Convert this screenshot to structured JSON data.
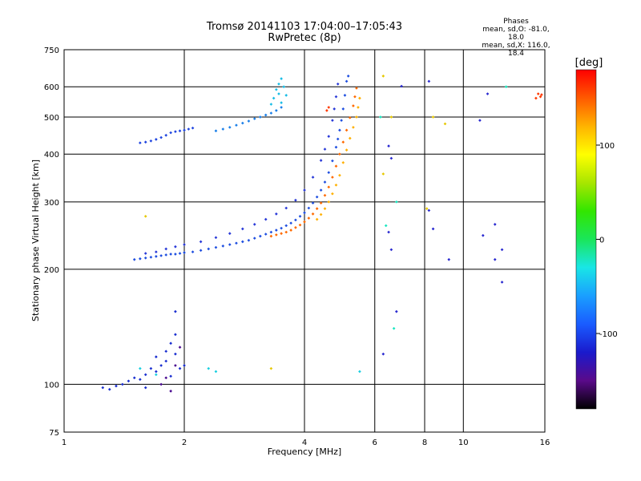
{
  "header": {
    "title_line1": "Tromsø 20141103 17:04:00–17:05:43",
    "title_line2": "RwPretec (8p)"
  },
  "phase_info": {
    "title": "Phases",
    "line_o": "mean, sd,O: -81.0, 18.0",
    "line_x": "mean, sd,X: 116.0, 18.4"
  },
  "colorbar": {
    "label": "[deg]",
    "ticks": [
      100,
      0,
      -100
    ],
    "range": [
      -180,
      180
    ],
    "colors": [
      "#000000",
      "#5a0a8a",
      "#1a1acc",
      "#1a5cff",
      "#1a9fff",
      "#19e6e6",
      "#1ae65a",
      "#32e600",
      "#a8e600",
      "#ffff00",
      "#ffb300",
      "#ff5a00",
      "#ff0000"
    ]
  },
  "chart_data": {
    "type": "scatter",
    "xlabel": "Frequency [MHz]",
    "ylabel": "Stationary phase Virtual Height [km]",
    "x_scale": "log",
    "y_scale": "log",
    "xlim": [
      1,
      16
    ],
    "ylim": [
      75,
      750
    ],
    "xticks": [
      1,
      2,
      4,
      6,
      8,
      10,
      16
    ],
    "yticks": [
      75,
      100,
      200,
      300,
      400,
      500,
      600,
      750
    ],
    "grid": true,
    "series": [
      {
        "color_value": -100,
        "color": "#1f4fe0",
        "points": [
          [
            1.5,
            212
          ],
          [
            1.55,
            213
          ],
          [
            1.6,
            214
          ],
          [
            1.65,
            215
          ],
          [
            1.7,
            216
          ],
          [
            1.75,
            217
          ],
          [
            1.8,
            218
          ],
          [
            1.85,
            219
          ],
          [
            1.9,
            219
          ],
          [
            1.95,
            220
          ],
          [
            2.0,
            221
          ],
          [
            2.1,
            222
          ],
          [
            2.2,
            224
          ],
          [
            2.3,
            226
          ],
          [
            2.4,
            228
          ],
          [
            2.5,
            230
          ],
          [
            2.6,
            232
          ],
          [
            2.7,
            234
          ],
          [
            2.8,
            236
          ],
          [
            2.9,
            238
          ],
          [
            3.0,
            241
          ],
          [
            3.1,
            244
          ],
          [
            3.2,
            247
          ],
          [
            3.3,
            250
          ],
          [
            3.4,
            253
          ],
          [
            3.5,
            256
          ],
          [
            3.6,
            260
          ],
          [
            3.7,
            264
          ],
          [
            3.8,
            269
          ],
          [
            3.9,
            275
          ],
          [
            4.0,
            281
          ],
          [
            4.1,
            289
          ],
          [
            4.2,
            298
          ],
          [
            4.3,
            309
          ],
          [
            4.4,
            322
          ],
          [
            4.5,
            338
          ],
          [
            4.6,
            358
          ],
          [
            4.7,
            384
          ],
          [
            4.8,
            417
          ],
          [
            4.85,
            438
          ],
          [
            4.9,
            462
          ],
          [
            4.95,
            490
          ],
          [
            5.0,
            525
          ],
          [
            5.05,
            570
          ],
          [
            5.1,
            620
          ],
          [
            5.15,
            640
          ]
        ]
      },
      {
        "color_value": -100,
        "color": "#2a3ad8",
        "points": [
          [
            1.6,
            220
          ],
          [
            1.7,
            222
          ],
          [
            1.8,
            226
          ],
          [
            1.9,
            229
          ],
          [
            2.0,
            232
          ],
          [
            2.2,
            236
          ],
          [
            2.4,
            242
          ],
          [
            2.6,
            248
          ],
          [
            2.8,
            255
          ],
          [
            3.0,
            262
          ],
          [
            3.2,
            270
          ],
          [
            3.4,
            279
          ],
          [
            3.6,
            289
          ],
          [
            3.8,
            303
          ],
          [
            4.0,
            322
          ],
          [
            4.2,
            348
          ],
          [
            4.4,
            385
          ],
          [
            4.5,
            412
          ],
          [
            4.6,
            445
          ],
          [
            4.7,
            490
          ],
          [
            4.75,
            525
          ],
          [
            4.8,
            565
          ],
          [
            4.85,
            610
          ]
        ]
      },
      {
        "color_value": -100,
        "color": "#2046e0",
        "points": [
          [
            1.55,
            428
          ],
          [
            1.6,
            430
          ],
          [
            1.65,
            433
          ],
          [
            1.7,
            437
          ],
          [
            1.75,
            442
          ],
          [
            1.8,
            448
          ],
          [
            1.85,
            455
          ],
          [
            1.9,
            458
          ],
          [
            1.95,
            460
          ],
          [
            2.0,
            462
          ],
          [
            2.05,
            465
          ],
          [
            2.1,
            468
          ]
        ]
      },
      {
        "color_value": -80,
        "color": "#1a7fe8",
        "points": [
          [
            2.4,
            460
          ],
          [
            2.5,
            465
          ],
          [
            2.6,
            470
          ],
          [
            2.7,
            476
          ],
          [
            2.8,
            482
          ],
          [
            2.9,
            488
          ],
          [
            3.0,
            495
          ],
          [
            3.1,
            500
          ],
          [
            3.2,
            506
          ],
          [
            3.3,
            512
          ],
          [
            3.4,
            520
          ],
          [
            3.5,
            530
          ]
        ]
      },
      {
        "color_value": -60,
        "color": "#19bde6",
        "points": [
          [
            3.3,
            540
          ],
          [
            3.35,
            560
          ],
          [
            3.4,
            590
          ],
          [
            3.45,
            610
          ],
          [
            3.5,
            630
          ],
          [
            3.55,
            600
          ],
          [
            3.6,
            570
          ],
          [
            3.5,
            545
          ],
          [
            3.45,
            575
          ]
        ]
      },
      {
        "color_value": 120,
        "color": "#ff6a00",
        "points": [
          [
            3.3,
            244
          ],
          [
            3.4,
            246
          ],
          [
            3.5,
            248
          ],
          [
            3.6,
            250
          ],
          [
            3.7,
            253
          ],
          [
            3.8,
            257
          ],
          [
            3.9,
            261
          ],
          [
            4.0,
            266
          ],
          [
            4.1,
            272
          ],
          [
            4.2,
            279
          ],
          [
            4.3,
            288
          ],
          [
            4.4,
            298
          ],
          [
            4.5,
            312
          ],
          [
            4.6,
            328
          ],
          [
            4.7,
            348
          ],
          [
            4.8,
            372
          ],
          [
            4.9,
            400
          ],
          [
            5.0,
            430
          ],
          [
            5.1,
            462
          ],
          [
            5.2,
            498
          ],
          [
            5.3,
            535
          ],
          [
            5.35,
            565
          ],
          [
            5.4,
            595
          ]
        ]
      },
      {
        "color_value": 100,
        "color": "#ffb000",
        "points": [
          [
            4.3,
            270
          ],
          [
            4.4,
            278
          ],
          [
            4.5,
            288
          ],
          [
            4.6,
            300
          ],
          [
            4.7,
            315
          ],
          [
            4.8,
            332
          ],
          [
            4.9,
            352
          ],
          [
            5.0,
            380
          ],
          [
            5.1,
            410
          ],
          [
            5.2,
            440
          ],
          [
            5.3,
            470
          ],
          [
            5.4,
            500
          ],
          [
            5.45,
            530
          ],
          [
            5.5,
            560
          ]
        ]
      },
      {
        "color_value": -100,
        "color": "#1a2fd0",
        "points": [
          [
            1.25,
            98
          ],
          [
            1.3,
            97
          ],
          [
            1.35,
            99
          ],
          [
            1.4,
            100
          ],
          [
            1.45,
            102
          ],
          [
            1.5,
            104
          ],
          [
            1.55,
            103
          ],
          [
            1.6,
            106
          ],
          [
            1.65,
            110
          ],
          [
            1.7,
            108
          ],
          [
            1.75,
            112
          ],
          [
            1.8,
            115
          ],
          [
            1.85,
            105
          ],
          [
            1.9,
            120
          ],
          [
            1.9,
            135
          ],
          [
            1.9,
            155
          ],
          [
            1.85,
            128
          ],
          [
            1.8,
            122
          ],
          [
            1.95,
            110
          ],
          [
            2.0,
            112
          ],
          [
            1.7,
            118
          ],
          [
            1.6,
            98
          ]
        ]
      },
      {
        "color_value": -140,
        "color": "#4a0a90",
        "points": [
          [
            1.75,
            100
          ],
          [
            1.85,
            96
          ],
          [
            1.9,
            112
          ],
          [
            1.95,
            125
          ],
          [
            1.8,
            104
          ]
        ]
      },
      {
        "color_value": -50,
        "color": "#19cfe0",
        "points": [
          [
            1.55,
            110
          ],
          [
            1.7,
            106
          ],
          [
            2.3,
            110
          ],
          [
            2.4,
            108
          ],
          [
            5.5,
            108
          ]
        ]
      },
      {
        "color_value": 90,
        "color": "#e6c800",
        "points": [
          [
            3.3,
            110
          ],
          [
            6.3,
            640
          ],
          [
            6.6,
            500
          ],
          [
            8.1,
            288
          ],
          [
            8.4,
            500
          ],
          [
            9.0,
            480
          ],
          [
            6.3,
            355
          ],
          [
            1.6,
            275
          ]
        ]
      },
      {
        "color_value": -110,
        "color": "#2a2ad0",
        "points": [
          [
            6.5,
            420
          ],
          [
            7.0,
            602
          ],
          [
            8.2,
            620
          ],
          [
            6.5,
            250
          ],
          [
            6.6,
            225
          ],
          [
            8.2,
            285
          ],
          [
            8.4,
            255
          ],
          [
            9.2,
            212
          ],
          [
            11.0,
            490
          ],
          [
            11.5,
            575
          ],
          [
            12.0,
            262
          ],
          [
            12.0,
            212
          ],
          [
            12.5,
            225
          ],
          [
            12.5,
            185
          ],
          [
            6.3,
            120
          ],
          [
            6.8,
            155
          ],
          [
            6.6,
            390
          ],
          [
            11.2,
            245
          ]
        ]
      },
      {
        "color_value": -30,
        "color": "#19e6c0",
        "points": [
          [
            6.2,
            500
          ],
          [
            6.4,
            260
          ],
          [
            6.8,
            300
          ],
          [
            6.7,
            140
          ],
          [
            12.8,
            600
          ]
        ]
      },
      {
        "color_value": 140,
        "color": "#ff3a00",
        "points": [
          [
            4.6,
            530
          ],
          [
            4.55,
            520
          ],
          [
            15.2,
            560
          ],
          [
            15.4,
            575
          ],
          [
            15.6,
            565
          ],
          [
            15.7,
            572
          ]
        ]
      }
    ]
  }
}
